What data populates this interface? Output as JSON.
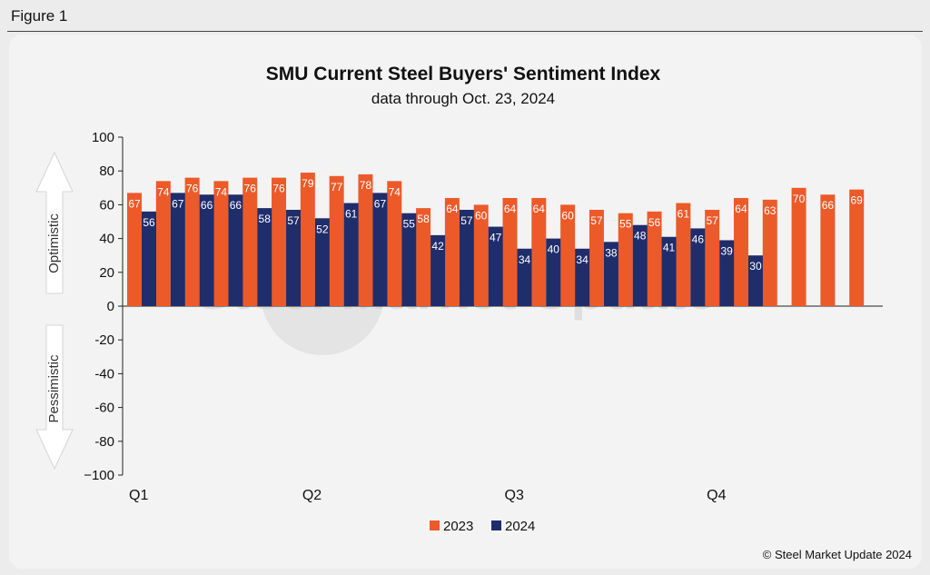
{
  "figure_label": "Figure 1",
  "copyright": "© Steel Market Update 2024",
  "watermark": "Steel Market Update",
  "arrows": {
    "up": "Optimistic",
    "down": "Pessimistic"
  },
  "colors": {
    "series_2023": "#ec5a2a",
    "series_2024": "#1f2d6b"
  },
  "chart_data": {
    "type": "bar",
    "title": "SMU Current Steel Buyers' Sentiment Index",
    "subtitle": "data through Oct. 23, 2024",
    "ylim": [
      -100,
      100
    ],
    "yticks": [
      100,
      80,
      60,
      40,
      20,
      0,
      -20,
      -40,
      -60,
      -80,
      -100
    ],
    "ytick_labels": [
      "100",
      "80",
      "60",
      "40",
      "20",
      "0",
      "-20",
      "-40",
      "-60",
      "-80",
      "−100"
    ],
    "quarter_labels": [
      {
        "label": "Q1",
        "index": 0
      },
      {
        "label": "Q2",
        "index": 6
      },
      {
        "label": "Q3",
        "index": 13
      },
      {
        "label": "Q4",
        "index": 20
      }
    ],
    "legend_position": "bottom",
    "series": [
      {
        "name": "2023",
        "values": [
          67,
          74,
          76,
          74,
          76,
          76,
          79,
          77,
          78,
          74,
          58,
          64,
          60,
          64,
          64,
          60,
          57,
          55,
          56,
          61,
          57,
          64,
          63,
          70,
          66,
          69
        ]
      },
      {
        "name": "2024",
        "values": [
          56,
          67,
          66,
          66,
          58,
          57,
          52,
          61,
          67,
          55,
          42,
          57,
          47,
          34,
          40,
          34,
          38,
          48,
          41,
          46,
          39,
          30,
          null,
          null,
          null,
          null
        ]
      }
    ]
  }
}
